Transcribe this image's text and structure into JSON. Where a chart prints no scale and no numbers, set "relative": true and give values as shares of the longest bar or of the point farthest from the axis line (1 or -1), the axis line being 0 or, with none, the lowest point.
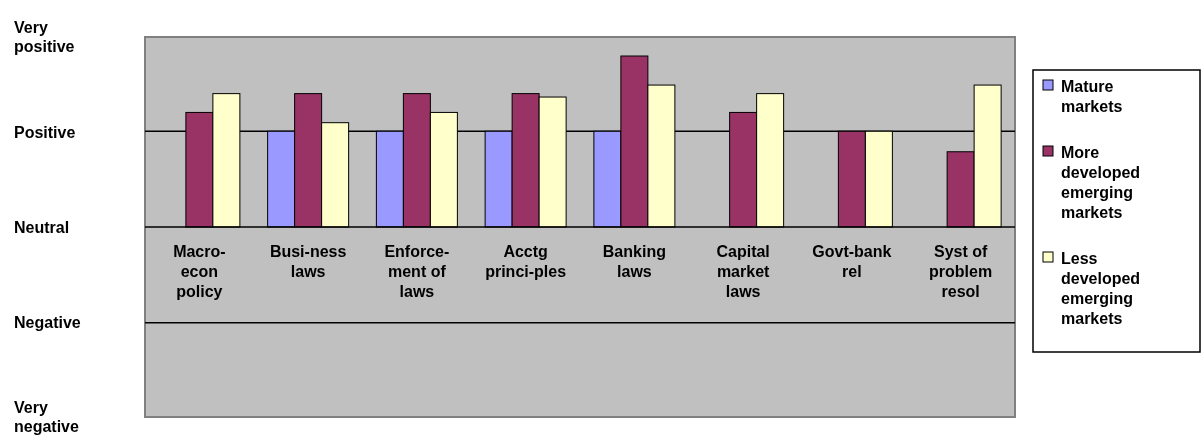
{
  "chart_data": {
    "type": "bar",
    "relative": true,
    "categories": [
      "Macro-econ policy",
      "Busi-ness laws",
      "Enforce-ment of laws",
      "Acctg princi-ples",
      "Banking laws",
      "Capital market laws",
      "Govt-bank rel",
      "Syst of problem resol"
    ],
    "series": [
      {
        "name": "Mature markets",
        "color": "#9999ff",
        "values": [
          null,
          0.56,
          0.56,
          0.56,
          0.56,
          null,
          null,
          null
        ]
      },
      {
        "name": "More developed emerging markets",
        "color": "#993366",
        "values": [
          0.67,
          0.78,
          0.78,
          0.78,
          1,
          0.67,
          0.56,
          0.44
        ]
      },
      {
        "name": "Less developed emerging markets",
        "color": "#ffffcc",
        "values": [
          0.78,
          0.61,
          0.67,
          0.76,
          0.83,
          0.78,
          0.56,
          0.83
        ]
      }
    ],
    "annotations": [
      "Very positive",
      "Positive",
      "Neutral",
      "Negative",
      "Very negative"
    ],
    "ref_lines": [
      {
        "axis": "y",
        "value": 0.56,
        "color": "#000000"
      },
      {
        "axis": "y",
        "value": -0.56,
        "color": "#000000"
      }
    ],
    "legend": "right"
  }
}
